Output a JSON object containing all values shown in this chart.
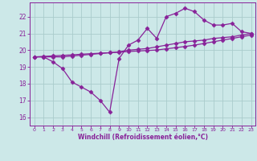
{
  "xlabel": "Windchill (Refroidissement éolien,°C)",
  "bg_color": "#cce8e8",
  "grid_color": "#aacccc",
  "line_color": "#882299",
  "x_ticks": [
    0,
    1,
    2,
    3,
    4,
    5,
    6,
    7,
    8,
    9,
    10,
    11,
    12,
    13,
    14,
    15,
    16,
    17,
    18,
    19,
    20,
    21,
    22,
    23
  ],
  "y_ticks": [
    16,
    17,
    18,
    19,
    20,
    21,
    22
  ],
  "xlim": [
    -0.5,
    23.5
  ],
  "ylim": [
    15.5,
    22.85
  ],
  "line1_x": [
    0,
    1,
    2,
    3,
    4,
    5,
    6,
    7,
    8,
    9,
    10,
    11,
    12,
    13,
    14,
    15,
    16,
    17,
    18,
    19,
    20,
    21,
    22,
    23
  ],
  "line1_y": [
    19.6,
    19.6,
    19.3,
    18.9,
    18.1,
    17.8,
    17.5,
    17.0,
    16.3,
    19.5,
    20.3,
    20.6,
    21.3,
    20.7,
    22.0,
    22.2,
    22.5,
    22.3,
    21.8,
    21.5,
    21.5,
    21.6,
    21.1,
    21.0
  ],
  "line2_x": [
    0,
    1,
    2,
    3,
    4,
    5,
    6,
    7,
    8,
    9,
    10,
    11,
    12,
    13,
    14,
    15,
    16,
    17,
    18,
    19,
    20,
    21,
    22,
    23
  ],
  "line2_y": [
    19.6,
    19.63,
    19.66,
    19.69,
    19.72,
    19.76,
    19.79,
    19.82,
    19.85,
    19.88,
    19.92,
    19.95,
    19.98,
    20.01,
    20.08,
    20.15,
    20.22,
    20.3,
    20.4,
    20.5,
    20.6,
    20.7,
    20.8,
    20.9
  ],
  "line3_x": [
    0,
    1,
    2,
    3,
    4,
    5,
    6,
    7,
    8,
    9,
    10,
    11,
    12,
    13,
    14,
    15,
    16,
    17,
    18,
    19,
    20,
    21,
    22,
    23
  ],
  "line3_y": [
    19.6,
    19.6,
    19.6,
    19.6,
    19.65,
    19.7,
    19.75,
    19.8,
    19.85,
    19.9,
    20.0,
    20.05,
    20.1,
    20.2,
    20.3,
    20.4,
    20.5,
    20.55,
    20.6,
    20.7,
    20.75,
    20.8,
    20.9,
    21.0
  ],
  "lw": 0.9,
  "ms": 2.5
}
